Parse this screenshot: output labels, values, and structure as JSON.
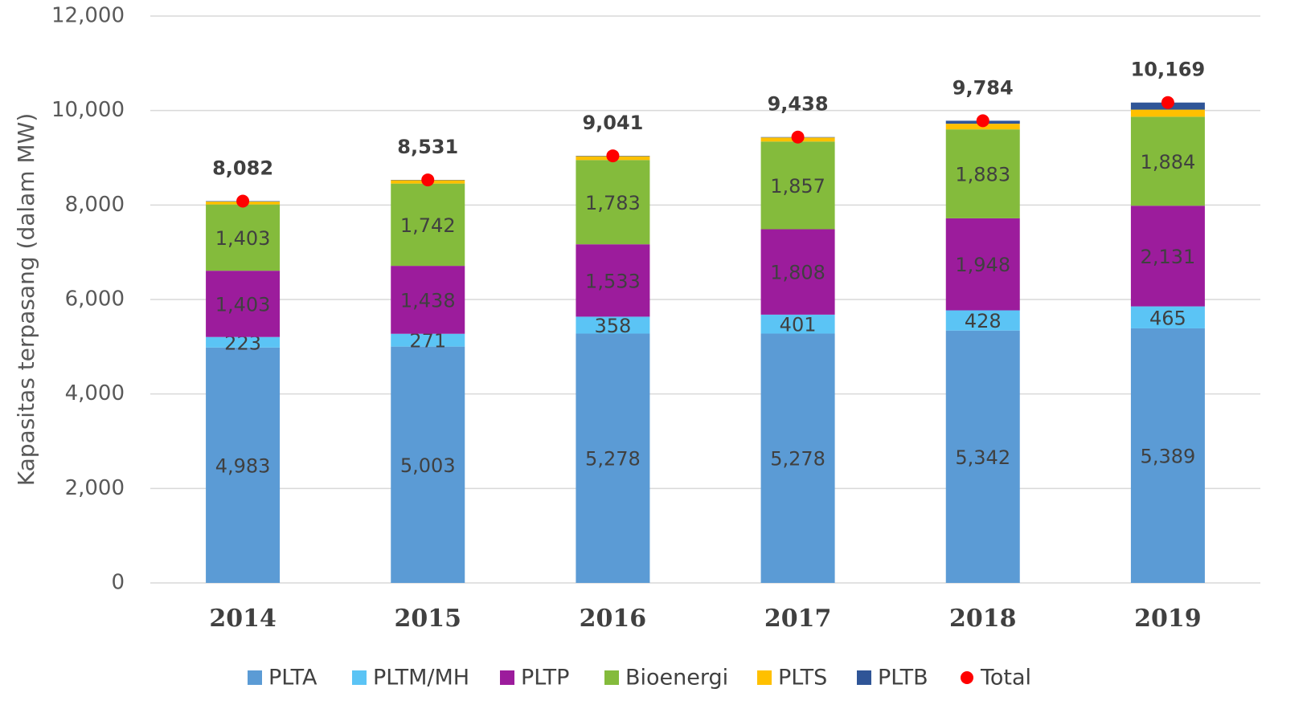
{
  "chart_data": {
    "type": "bar",
    "stacked": true,
    "y_label": "Kapasitas terpasang (dalam MW)",
    "categories": [
      "2014",
      "2015",
      "2016",
      "2017",
      "2018",
      "2019"
    ],
    "series": [
      {
        "name": "PLTA",
        "color": "#5b9bd5",
        "values": [
          4983,
          5003,
          5278,
          5278,
          5342,
          5389
        ],
        "value_labels": [
          "4,983",
          "5,003",
          "5,278",
          "5,278",
          "5,342",
          "5,389"
        ],
        "label_color": "#404040"
      },
      {
        "name": "PLTM/MH",
        "color": "#5bc4f5",
        "values": [
          223,
          271,
          358,
          401,
          428,
          465
        ],
        "value_labels": [
          "223",
          "271",
          "358",
          "401",
          "428",
          "465"
        ],
        "label_color": "#404040"
      },
      {
        "name": "PLTP",
        "color": "#9c1c9c",
        "values": [
          1403,
          1438,
          1533,
          1808,
          1948,
          2131
        ],
        "value_labels": [
          "1,403",
          "1,438",
          "1,533",
          "1,808",
          "1,948",
          "2,131"
        ],
        "label_color": "#ffffff"
      },
      {
        "name": "Bioenergi",
        "color": "#84bb3c",
        "values": [
          1403,
          1742,
          1783,
          1857,
          1883,
          1884
        ],
        "value_labels": [
          "1,403",
          "1,742",
          "1,783",
          "1,857",
          "1,883",
          "1,884"
        ],
        "label_color": "#404040"
      },
      {
        "name": "PLTS",
        "color": "#ffc000",
        "values": [
          60,
          70,
          80,
          85,
          120,
          150
        ]
      },
      {
        "name": "PLTB",
        "color": "#2f5597",
        "values": [
          10,
          7,
          9,
          9,
          63,
          150
        ]
      },
      {
        "name": "Total",
        "type": "scatter",
        "color": "#ff0000",
        "values": [
          8082,
          8531,
          9041,
          9438,
          9784,
          10169
        ],
        "value_labels": [
          "8,082",
          "8,531",
          "9,041",
          "9,438",
          "9,784",
          "10,169"
        ]
      }
    ],
    "ylim": [
      0,
      12000
    ],
    "yticks": [
      0,
      {
        "value": 2000,
        "label": "2,000"
      },
      {
        "value": 4000,
        "label": "4,000"
      },
      {
        "value": 6000,
        "label": "6,000"
      },
      {
        "value": 8000,
        "label": "8,000"
      },
      {
        "value": 10000,
        "label": "10,000"
      },
      {
        "value": 12000,
        "label": "12,000"
      }
    ],
    "grid": true
  }
}
